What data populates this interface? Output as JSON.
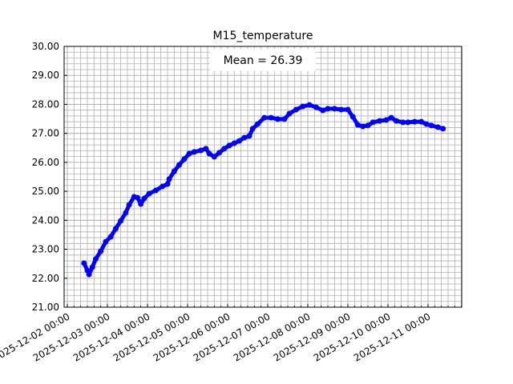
{
  "chart_data": {
    "type": "line",
    "title": "M15_temperature",
    "annotation": "Mean = 26.39",
    "x": [
      "2025-12-02 10:00",
      "2025-12-02 12:00",
      "2025-12-02 13:00",
      "2025-12-02 15:00",
      "2025-12-02 17:00",
      "2025-12-02 20:00",
      "2025-12-02 23:00",
      "2025-12-03 02:00",
      "2025-12-03 05:00",
      "2025-12-03 08:00",
      "2025-12-03 11:00",
      "2025-12-03 13:00",
      "2025-12-03 16:00",
      "2025-12-03 18:00",
      "2025-12-03 20:00",
      "2025-12-03 22:00",
      "2025-12-04 01:00",
      "2025-12-04 05:00",
      "2025-12-04 09:00",
      "2025-12-04 12:00",
      "2025-12-04 13:00",
      "2025-12-04 16:00",
      "2025-12-04 19:00",
      "2025-12-04 22:00",
      "2025-12-05 01:00",
      "2025-12-05 04:00",
      "2025-12-05 08:00",
      "2025-12-05 11:00",
      "2025-12-05 13:00",
      "2025-12-05 16:00",
      "2025-12-05 19:00",
      "2025-12-05 22:00",
      "2025-12-06 01:00",
      "2025-12-06 04:00",
      "2025-12-06 07:00",
      "2025-12-06 10:00",
      "2025-12-06 13:00",
      "2025-12-06 15:00",
      "2025-12-06 18:00",
      "2025-12-06 22:00",
      "2025-12-07 02:00",
      "2025-12-07 06:00",
      "2025-12-07 10:00",
      "2025-12-07 13:00",
      "2025-12-07 17:00",
      "2025-12-07 21:00",
      "2025-12-08 01:00",
      "2025-12-08 05:00",
      "2025-12-08 09:00",
      "2025-12-08 12:00",
      "2025-12-08 16:00",
      "2025-12-08 20:00",
      "2025-12-09 00:00",
      "2025-12-09 03:00",
      "2025-12-09 06:00",
      "2025-12-09 09:00",
      "2025-12-09 12:00",
      "2025-12-09 15:00",
      "2025-12-09 19:00",
      "2025-12-09 23:00",
      "2025-12-10 02:00",
      "2025-12-10 05:00",
      "2025-12-10 09:00",
      "2025-12-10 12:00",
      "2025-12-10 16:00",
      "2025-12-10 20:00",
      "2025-12-10 23:00",
      "2025-12-11 02:00",
      "2025-12-11 06:00",
      "2025-12-11 09:00"
    ],
    "values": [
      22.52,
      22.27,
      22.13,
      22.38,
      22.66,
      22.93,
      23.26,
      23.43,
      23.71,
      23.98,
      24.26,
      24.53,
      24.81,
      24.78,
      24.56,
      24.75,
      24.92,
      25.03,
      25.17,
      25.25,
      25.42,
      25.69,
      25.91,
      26.11,
      26.3,
      26.36,
      26.41,
      26.47,
      26.3,
      26.19,
      26.33,
      26.47,
      26.58,
      26.66,
      26.74,
      26.85,
      26.91,
      27.16,
      27.32,
      27.54,
      27.54,
      27.49,
      27.49,
      27.68,
      27.82,
      27.93,
      27.98,
      27.9,
      27.79,
      27.85,
      27.85,
      27.82,
      27.82,
      27.57,
      27.29,
      27.24,
      27.27,
      27.38,
      27.43,
      27.46,
      27.54,
      27.43,
      27.38,
      27.38,
      27.4,
      27.4,
      27.32,
      27.27,
      27.21,
      27.16
    ],
    "color": "#0000ff",
    "xlim": [
      "2025-12-01 22:05",
      "2025-12-11 20:10"
    ],
    "xticks": [
      "2025-12-02 00:00",
      "2025-12-03 00:00",
      "2025-12-04 00:00",
      "2025-12-05 00:00",
      "2025-12-06 00:00",
      "2025-12-07 00:00",
      "2025-12-08 00:00",
      "2025-12-09 00:00",
      "2025-12-10 00:00",
      "2025-12-11 00:00"
    ],
    "ylim": [
      21,
      30
    ],
    "yticks": [
      {
        "value": 21,
        "label": "21.00"
      },
      {
        "value": 22,
        "label": "22.00"
      },
      {
        "value": 23,
        "label": "23.00"
      },
      {
        "value": 24,
        "label": "24.00"
      },
      {
        "value": 25,
        "label": "25.00"
      },
      {
        "value": 26,
        "label": "26.00"
      },
      {
        "value": 27,
        "label": "27.00"
      },
      {
        "value": 28,
        "label": "28.00"
      },
      {
        "value": 29,
        "label": "29.00"
      },
      {
        "value": 30,
        "label": "30.00"
      }
    ],
    "grid": true,
    "minor_grid": true
  }
}
